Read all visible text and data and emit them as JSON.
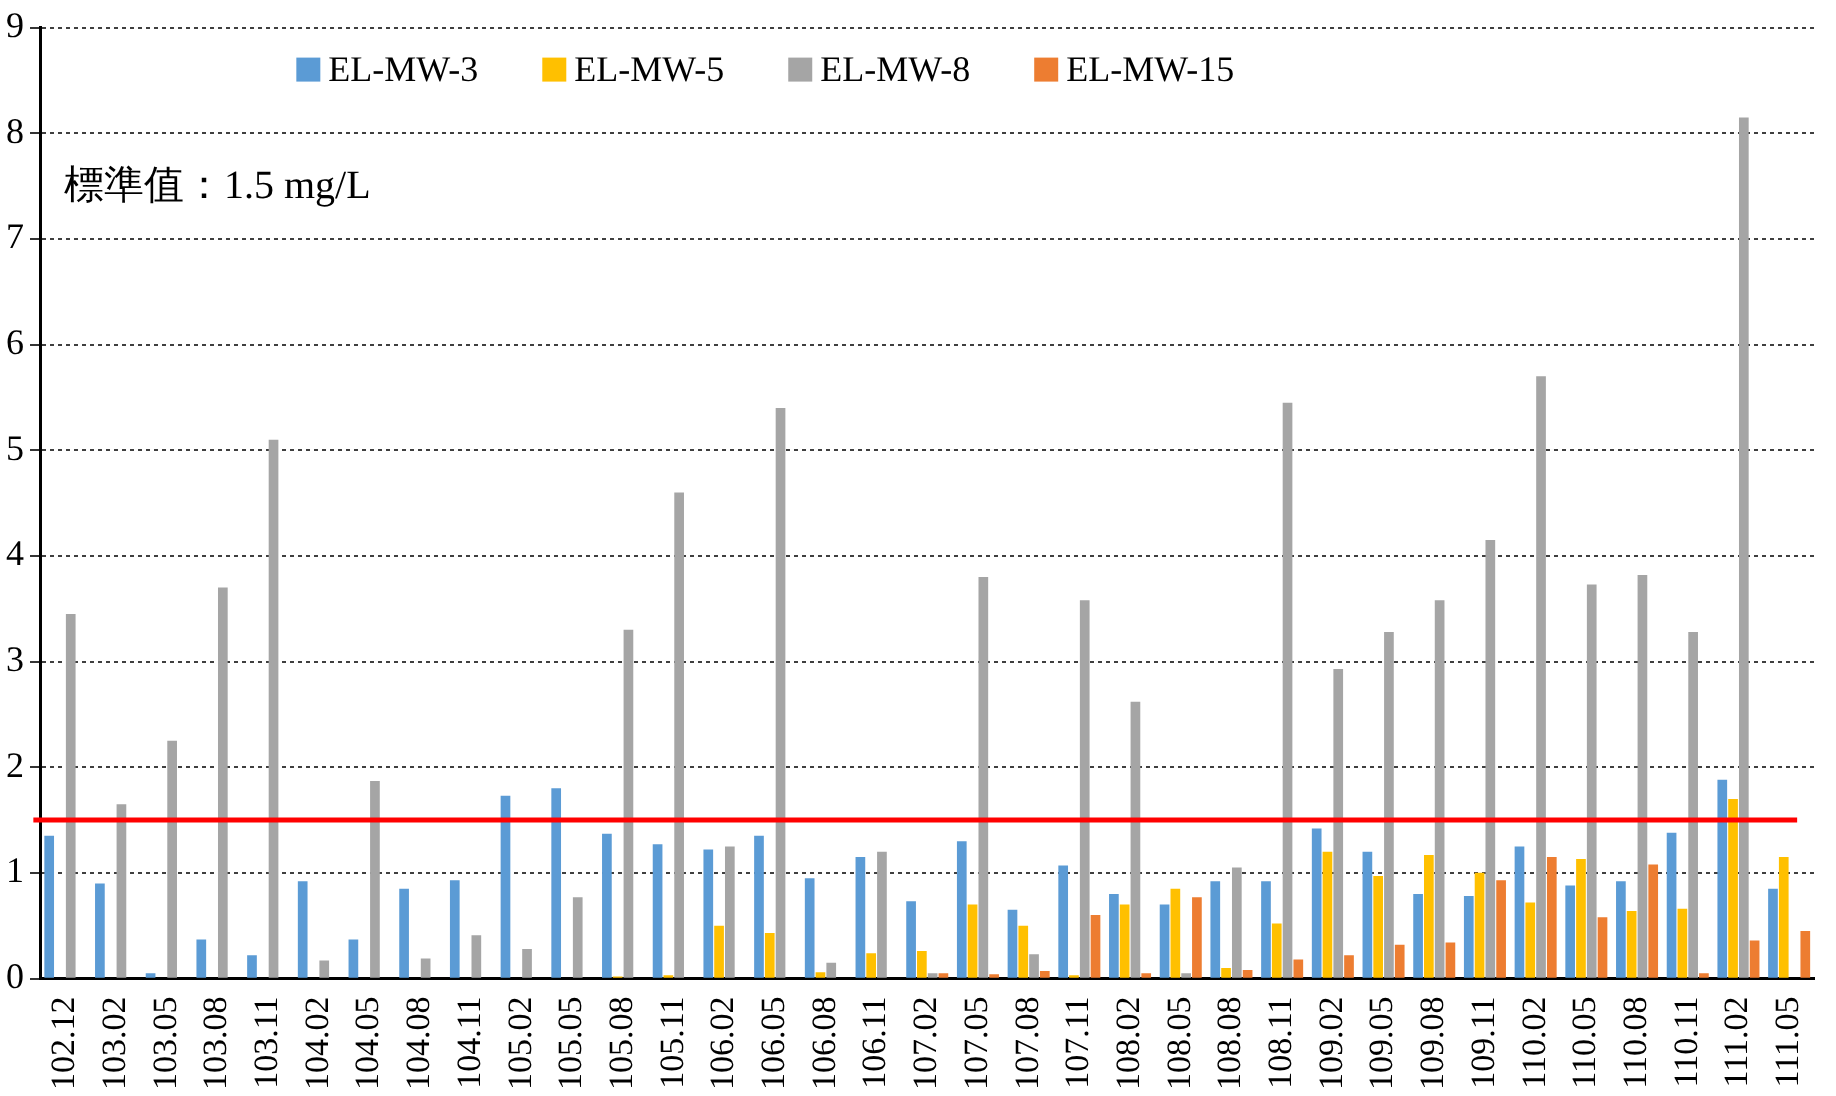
{
  "chart_data": {
    "type": "bar",
    "categories": [
      "102.12",
      "103.02",
      "103.05",
      "103.08",
      "103.11",
      "104.02",
      "104.05",
      "104.08",
      "104.11",
      "105.02",
      "105.05",
      "105.08",
      "105.11",
      "106.02",
      "106.05",
      "106.08",
      "106.11",
      "107.02",
      "107.05",
      "107.08",
      "107.11",
      "108.02",
      "108.05",
      "108.08",
      "108.11",
      "109.02",
      "109.05",
      "109.08",
      "109.11",
      "110.02",
      "110.05",
      "110.08",
      "110.11",
      "111.02",
      "111.05"
    ],
    "series": [
      {
        "name": "EL-MW-3",
        "color": "#5b9bd5",
        "values": [
          1.35,
          0.9,
          0.05,
          0.37,
          0.22,
          0.92,
          0.37,
          0.85,
          0.93,
          1.73,
          1.8,
          1.37,
          1.27,
          1.22,
          1.35,
          0.95,
          1.15,
          0.73,
          1.3,
          0.65,
          1.07,
          0.8,
          0.7,
          0.92,
          0.92,
          1.42,
          1.2,
          0.8,
          0.78,
          1.25,
          0.88,
          0.92,
          1.38,
          1.88,
          0.85
        ]
      },
      {
        "name": "EL-MW-5",
        "color": "#ffc000",
        "values": [
          null,
          null,
          null,
          null,
          null,
          null,
          null,
          null,
          null,
          null,
          null,
          0.02,
          0.03,
          0.5,
          0.43,
          0.06,
          0.24,
          0.26,
          0.7,
          0.5,
          0.03,
          0.7,
          0.85,
          0.1,
          0.52,
          1.2,
          0.97,
          1.17,
          1.0,
          0.72,
          1.13,
          0.64,
          0.66,
          1.7,
          1.15
        ]
      },
      {
        "name": "EL-MW-8",
        "color": "#a5a5a5",
        "values": [
          3.45,
          1.65,
          2.25,
          3.7,
          5.1,
          0.17,
          1.87,
          0.19,
          0.41,
          0.28,
          0.77,
          3.3,
          4.6,
          1.25,
          5.4,
          0.15,
          1.2,
          0.05,
          3.8,
          0.23,
          3.58,
          2.62,
          0.05,
          1.05,
          5.45,
          2.93,
          3.28,
          3.58,
          4.15,
          5.7,
          3.73,
          3.82,
          3.28,
          8.15,
          null
        ]
      },
      {
        "name": "EL-MW-15",
        "color": "#ed7d31",
        "values": [
          null,
          null,
          null,
          null,
          null,
          null,
          null,
          null,
          null,
          null,
          null,
          null,
          null,
          null,
          null,
          null,
          null,
          0.05,
          0.04,
          0.07,
          0.6,
          0.05,
          0.77,
          0.08,
          0.18,
          0.22,
          0.32,
          0.34,
          0.93,
          1.15,
          0.58,
          1.08,
          0.05,
          0.36,
          0.45
        ]
      }
    ],
    "ylim": [
      0,
      9
    ],
    "yticks": [
      0,
      1,
      2,
      3,
      4,
      5,
      6,
      7,
      8,
      9
    ],
    "grid": "y",
    "legend": "top",
    "annotations": [
      "標準值：1.5 mg/L"
    ],
    "ref_lines": [
      {
        "axis": "y",
        "value": 1.5,
        "color": "#ff0000"
      }
    ]
  }
}
